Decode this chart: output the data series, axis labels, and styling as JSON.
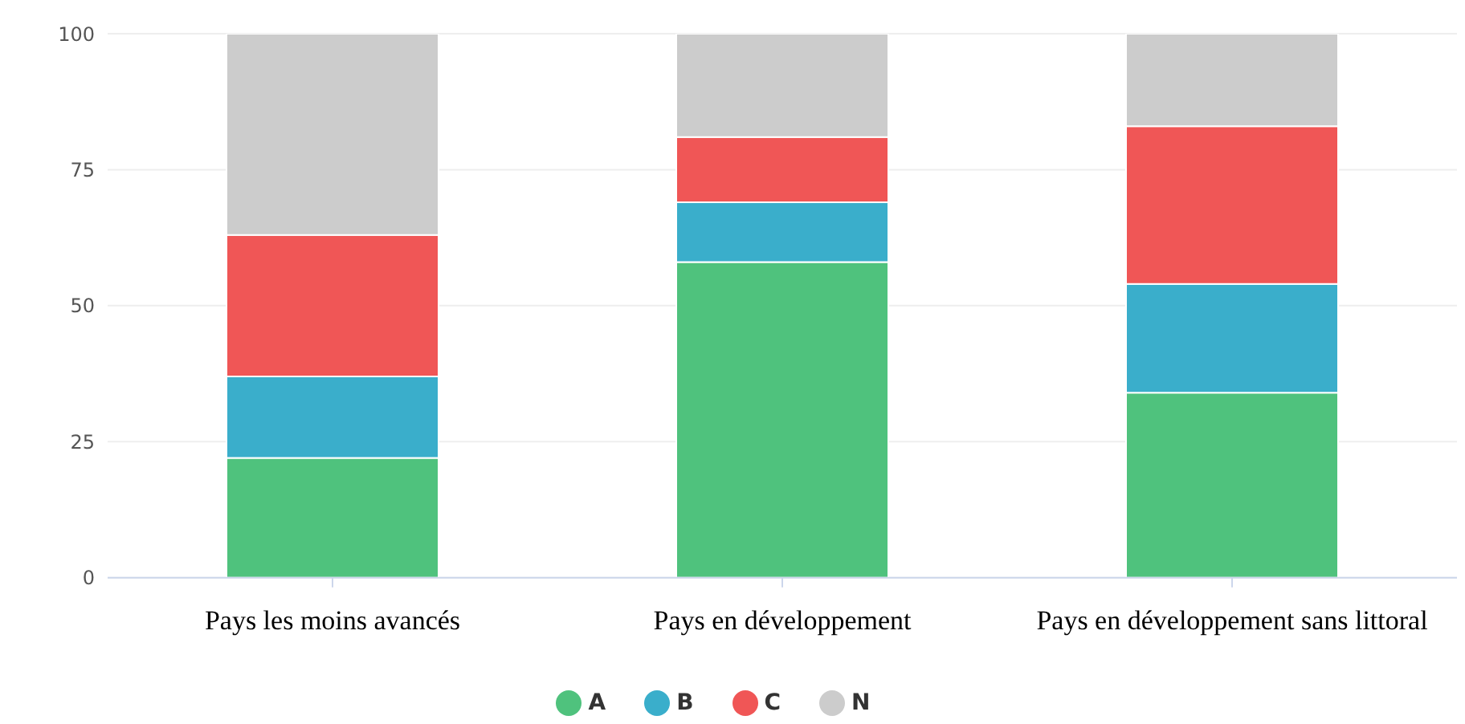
{
  "chart_data": {
    "type": "bar",
    "stacked": true,
    "categories": [
      "Pays les moins avancés",
      "Pays en développement",
      "Pays en développement sans littoral"
    ],
    "series": [
      {
        "name": "A",
        "color": "#4fc27d",
        "values": [
          22,
          58,
          34
        ]
      },
      {
        "name": "B",
        "color": "#3aaecb",
        "values": [
          15,
          11,
          20
        ]
      },
      {
        "name": "C",
        "color": "#f05656",
        "values": [
          26,
          12,
          29
        ]
      },
      {
        "name": "N",
        "color": "#cccccc",
        "values": [
          37,
          19,
          17
        ]
      }
    ],
    "ylim": [
      0,
      100
    ],
    "yticks": [
      0,
      25,
      50,
      75,
      100
    ],
    "grid": "y",
    "legend": "bottom"
  }
}
